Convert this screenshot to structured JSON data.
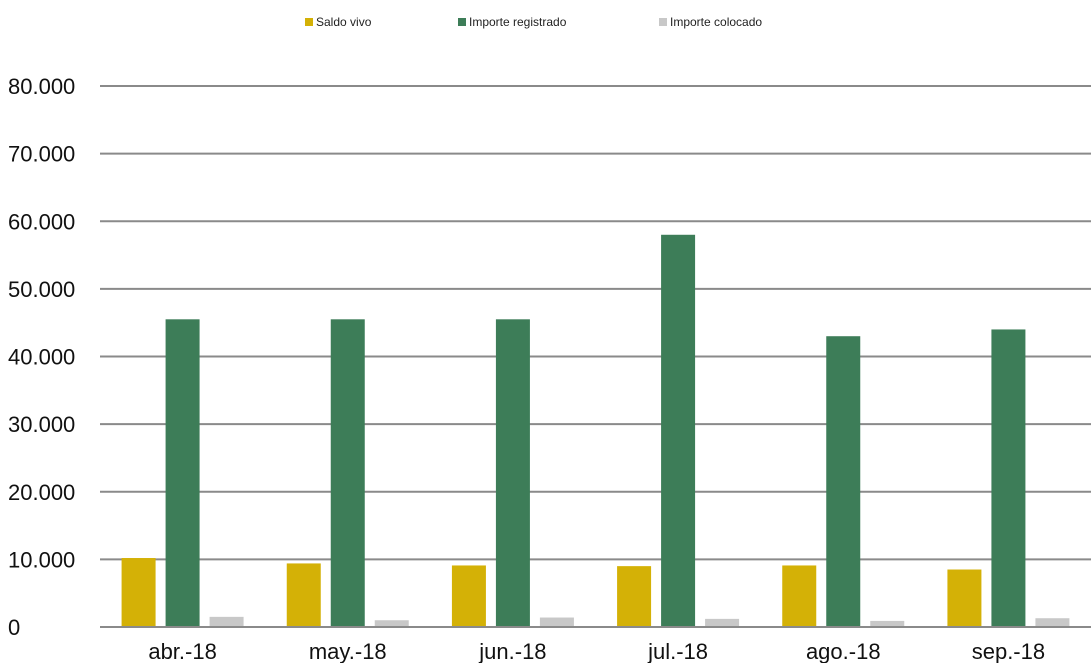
{
  "chart_data": {
    "type": "bar",
    "categories": [
      "abr.-18",
      "may.-18",
      "jun.-18",
      "jul.-18",
      "ago.-18",
      "sep.-18"
    ],
    "series": [
      {
        "name": "Saldo vivo",
        "color": "#d4b106",
        "values": [
          10200,
          9400,
          9100,
          9000,
          9100,
          8500
        ]
      },
      {
        "name": "Importe registrado",
        "color": "#3d7d58",
        "values": [
          45500,
          45500,
          45500,
          58000,
          43000,
          44000
        ]
      },
      {
        "name": "Importe colocado",
        "color": "#c8c8c8",
        "values": [
          1500,
          1000,
          1400,
          1200,
          900,
          1300
        ]
      }
    ],
    "ylim": [
      0,
      80000
    ],
    "yticks": [
      0,
      10000,
      20000,
      30000,
      40000,
      50000,
      60000,
      70000,
      80000
    ],
    "ytick_labels": [
      "0",
      "10.000",
      "20.000",
      "30.000",
      "40.000",
      "50.000",
      "60.000",
      "70.000",
      "80.000"
    ],
    "grid": true,
    "legend_position": "top-center"
  }
}
